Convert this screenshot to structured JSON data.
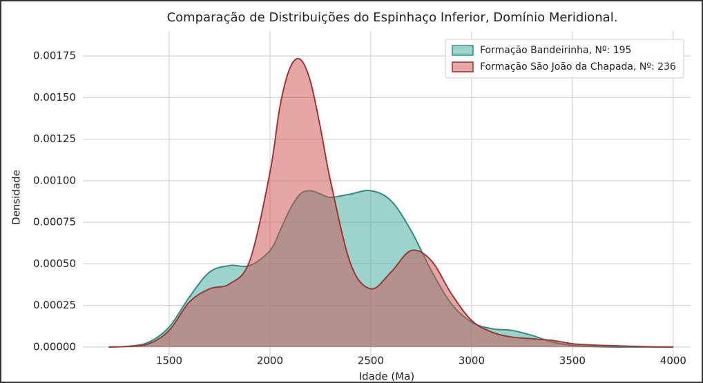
{
  "chart_data": {
    "type": "kde",
    "title": "Comparação de Distribuições do Espinhaço Inferior, Domínio Meridional.",
    "x_label": "Idade (Ma)",
    "y_label": "Densidade",
    "x": [
      1200,
      1300,
      1400,
      1500,
      1600,
      1700,
      1800,
      1900,
      2000,
      2050,
      2100,
      2150,
      2200,
      2250,
      2300,
      2400,
      2500,
      2600,
      2700,
      2800,
      2900,
      3000,
      3100,
      3200,
      3300,
      3400,
      3500,
      3600,
      3700,
      3800,
      3900,
      4000
    ],
    "series": [
      {
        "name": "Formação Bandeirinha, Nº: 195",
        "color": "#3aa89a",
        "line_color": "#2a8f83",
        "values": [
          0,
          5e-06,
          3e-05,
          0.00012,
          0.0003,
          0.00045,
          0.00049,
          0.00049,
          0.00058,
          0.0007,
          0.00083,
          0.00092,
          0.00094,
          0.00092,
          0.0009,
          0.00092,
          0.00094,
          0.00088,
          0.0007,
          0.00046,
          0.00026,
          0.00015,
          0.00011,
          0.0001,
          7e-05,
          3e-05,
          1e-05,
          3e-06,
          0,
          0,
          0,
          0
        ]
      },
      {
        "name": "Formação São João da Chapada, Nº: 236",
        "color": "#c9504d",
        "line_color": "#a8302f",
        "values": [
          0,
          4e-06,
          2e-05,
          0.0001,
          0.00027,
          0.00035,
          0.00038,
          0.00052,
          0.00105,
          0.00145,
          0.00168,
          0.00173,
          0.0016,
          0.00132,
          0.001,
          0.0005,
          0.00035,
          0.00045,
          0.00058,
          0.00052,
          0.00032,
          0.00016,
          9e-05,
          6e-05,
          5e-05,
          4e-05,
          2e-05,
          1.2e-05,
          8e-06,
          4e-06,
          1e-06,
          0
        ]
      }
    ],
    "xlim": [
      1072,
      4086
    ],
    "xticks": [
      1500,
      2000,
      2500,
      3000,
      3500,
      4000
    ],
    "ylim": [
      -0.0001,
      0.0019
    ],
    "yticks": [
      {
        "value": 0,
        "label": "0.00000"
      },
      {
        "value": 0.00025,
        "label": "0.00025"
      },
      {
        "value": 0.0005,
        "label": "0.00050"
      },
      {
        "value": 0.00075,
        "label": "0.00075"
      },
      {
        "value": 0.001,
        "label": "0.00100"
      },
      {
        "value": 0.00125,
        "label": "0.00125"
      },
      {
        "value": 0.0015,
        "label": "0.00150"
      },
      {
        "value": 0.00175,
        "label": "0.00175"
      }
    ],
    "grid": true,
    "legend": "upper right"
  }
}
